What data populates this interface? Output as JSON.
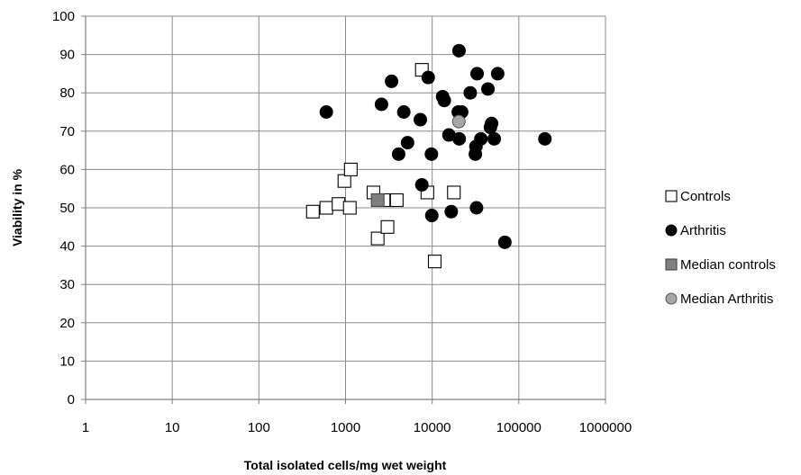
{
  "chart_data": {
    "type": "scatter",
    "xlabel": "Total isolated cells/mg wet weight",
    "ylabel": "Viability in %",
    "xscale": "log",
    "xlim": [
      1,
      1000000
    ],
    "ylim": [
      0,
      100
    ],
    "x_ticks": [
      1,
      10,
      100,
      1000,
      10000,
      100000,
      1000000
    ],
    "x_tick_labels": [
      "1",
      "10",
      "100",
      "1000",
      "10000",
      "100000",
      "1000000"
    ],
    "y_ticks": [
      0,
      10,
      20,
      30,
      40,
      50,
      60,
      70,
      80,
      90,
      100
    ],
    "y_tick_labels": [
      "0",
      "10",
      "20",
      "30",
      "40",
      "50",
      "60",
      "70",
      "80",
      "90",
      "100"
    ],
    "grid": true,
    "legend_position": "right",
    "series": [
      {
        "name": "Controls",
        "marker": "square-open",
        "color": "#000000",
        "fill": "#ffffff",
        "points": [
          {
            "x": 420,
            "y": 49
          },
          {
            "x": 600,
            "y": 50
          },
          {
            "x": 830,
            "y": 51
          },
          {
            "x": 970,
            "y": 57
          },
          {
            "x": 1150,
            "y": 60
          },
          {
            "x": 1120,
            "y": 50
          },
          {
            "x": 2100,
            "y": 54
          },
          {
            "x": 2750,
            "y": 52
          },
          {
            "x": 3900,
            "y": 52
          },
          {
            "x": 2350,
            "y": 42
          },
          {
            "x": 3050,
            "y": 45
          },
          {
            "x": 7600,
            "y": 86
          },
          {
            "x": 8800,
            "y": 54
          },
          {
            "x": 10700,
            "y": 36
          },
          {
            "x": 17800,
            "y": 54
          }
        ]
      },
      {
        "name": "Arthritis",
        "marker": "circle-filled",
        "color": "#000000",
        "fill": "#000000",
        "points": [
          {
            "x": 600,
            "y": 75
          },
          {
            "x": 2600,
            "y": 77
          },
          {
            "x": 3400,
            "y": 83
          },
          {
            "x": 4100,
            "y": 64
          },
          {
            "x": 4700,
            "y": 75
          },
          {
            "x": 5200,
            "y": 67
          },
          {
            "x": 7300,
            "y": 73
          },
          {
            "x": 7600,
            "y": 56
          },
          {
            "x": 9000,
            "y": 84
          },
          {
            "x": 9800,
            "y": 64
          },
          {
            "x": 9900,
            "y": 48
          },
          {
            "x": 13200,
            "y": 79
          },
          {
            "x": 13800,
            "y": 78
          },
          {
            "x": 15600,
            "y": 69
          },
          {
            "x": 16600,
            "y": 49
          },
          {
            "x": 20400,
            "y": 91
          },
          {
            "x": 20000,
            "y": 75
          },
          {
            "x": 20500,
            "y": 68
          },
          {
            "x": 21900,
            "y": 75
          },
          {
            "x": 27500,
            "y": 80
          },
          {
            "x": 31500,
            "y": 64
          },
          {
            "x": 32000,
            "y": 66
          },
          {
            "x": 32500,
            "y": 50
          },
          {
            "x": 33000,
            "y": 85
          },
          {
            "x": 36500,
            "y": 68
          },
          {
            "x": 44000,
            "y": 81
          },
          {
            "x": 47000,
            "y": 71
          },
          {
            "x": 48500,
            "y": 72
          },
          {
            "x": 52000,
            "y": 68
          },
          {
            "x": 57000,
            "y": 85
          },
          {
            "x": 69000,
            "y": 41
          },
          {
            "x": 200000,
            "y": 68
          }
        ]
      },
      {
        "name": "Median controls",
        "marker": "square-filled",
        "color": "#444444",
        "fill": "#7f7f7f",
        "points": [
          {
            "x": 2350,
            "y": 52
          }
        ]
      },
      {
        "name": "Median Arthritis",
        "marker": "circle-filled",
        "color": "#555555",
        "fill": "#a6a6a6",
        "points": [
          {
            "x": 20300,
            "y": 72.5
          }
        ]
      }
    ]
  }
}
